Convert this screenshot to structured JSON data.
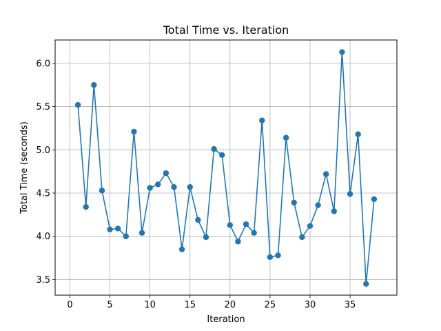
{
  "chart_data": {
    "type": "line",
    "title": "Total Time vs. Iteration",
    "xlabel": "Iteration",
    "ylabel": "Total Time (seconds)",
    "xlim": [
      -1.85,
      40.85
    ],
    "ylim": [
      3.32,
      6.27
    ],
    "xticks": [
      0,
      5,
      10,
      15,
      20,
      25,
      30,
      35
    ],
    "yticks": [
      3.5,
      4.0,
      4.5,
      5.0,
      5.5,
      6.0
    ],
    "xtick_labels": [
      "0",
      "5",
      "10",
      "15",
      "20",
      "25",
      "30",
      "35"
    ],
    "ytick_labels": [
      "3.5",
      "4.0",
      "4.5",
      "5.0",
      "5.5",
      "6.0"
    ],
    "grid": true,
    "color": "#1f77b4",
    "marker": "circle",
    "x": [
      1,
      2,
      3,
      4,
      5,
      6,
      7,
      8,
      9,
      10,
      11,
      12,
      13,
      14,
      15,
      16,
      17,
      18,
      19,
      20,
      21,
      22,
      23,
      24,
      25,
      26,
      27,
      28,
      29,
      30,
      31,
      32,
      33,
      34,
      35,
      36,
      37,
      38
    ],
    "y": [
      5.52,
      4.34,
      5.75,
      4.53,
      4.08,
      4.09,
      4.0,
      5.21,
      4.04,
      4.56,
      4.6,
      4.73,
      4.57,
      3.85,
      4.57,
      4.19,
      3.99,
      5.01,
      4.94,
      4.13,
      3.94,
      4.14,
      4.04,
      5.34,
      3.76,
      3.78,
      5.14,
      4.39,
      3.99,
      4.12,
      4.36,
      4.72,
      4.29,
      6.13,
      4.49,
      5.18,
      3.45,
      4.43
    ]
  }
}
